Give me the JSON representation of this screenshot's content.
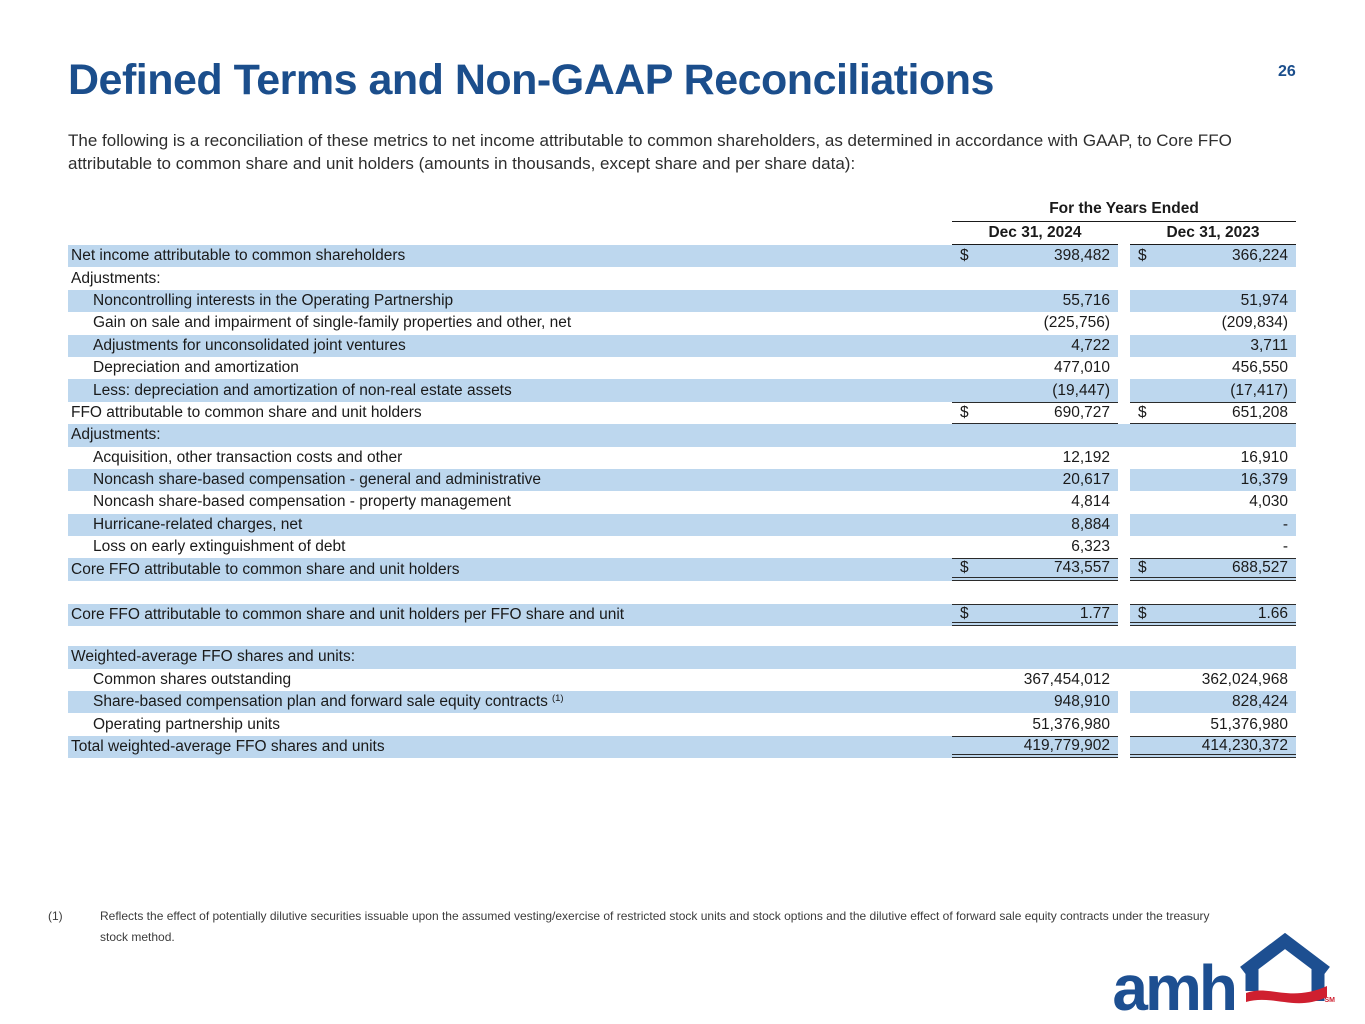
{
  "page": {
    "title": "Defined Terms and Non-GAAP Reconciliations",
    "page_number": "26",
    "intro": "The following is a reconciliation of these metrics to net income attributable to common shareholders, as determined in accordance with GAAP, to Core FFO attributable to common share and unit holders (amounts in thousands, except share and per share data):"
  },
  "colors": {
    "accent_blue": "#1b4e8c",
    "row_shade_blue": "#bdd7ee",
    "logo_red": "#cf1f2f"
  },
  "table": {
    "group_header": "For the Years Ended",
    "col_headers": [
      "Dec 31, 2024",
      "Dec 31, 2023"
    ],
    "rows": [
      {
        "label": "Net income attributable to common shareholders",
        "indent": false,
        "shaded": true,
        "dollar": true,
        "v2024": "398,482",
        "v2023": "366,224"
      },
      {
        "label": "Adjustments:",
        "indent": false,
        "shaded": false
      },
      {
        "label": "Noncontrolling interests in the Operating Partnership",
        "indent": true,
        "shaded": true,
        "v2024": "55,716",
        "v2023": "51,974"
      },
      {
        "label": "Gain on sale and impairment of single-family properties and other, net",
        "indent": true,
        "shaded": false,
        "v2024": "(225,756)",
        "v2023": "(209,834)"
      },
      {
        "label": "Adjustments for unconsolidated joint ventures",
        "indent": true,
        "shaded": true,
        "v2024": "4,722",
        "v2023": "3,711"
      },
      {
        "label": "Depreciation and amortization",
        "indent": true,
        "shaded": false,
        "v2024": "477,010",
        "v2023": "456,550"
      },
      {
        "label": "Less: depreciation and amortization of non-real estate assets",
        "indent": true,
        "shaded": true,
        "v2024": "(19,447)",
        "v2023": "(17,417)"
      },
      {
        "label": "FFO attributable to common share and unit holders",
        "indent": false,
        "shaded": false,
        "dollar": true,
        "line_top": true,
        "line_bottom": "single",
        "v2024": "690,727",
        "v2023": "651,208"
      },
      {
        "label": "Adjustments:",
        "indent": false,
        "shaded": true
      },
      {
        "label": "Acquisition, other transaction costs and other",
        "indent": true,
        "shaded": false,
        "v2024": "12,192",
        "v2023": "16,910"
      },
      {
        "label": "Noncash share-based compensation - general and administrative",
        "indent": true,
        "shaded": true,
        "v2024": "20,617",
        "v2023": "16,379"
      },
      {
        "label": "Noncash share-based compensation - property management",
        "indent": true,
        "shaded": false,
        "v2024": "4,814",
        "v2023": "4,030"
      },
      {
        "label": "Hurricane-related charges, net",
        "indent": true,
        "shaded": true,
        "v2024": "8,884",
        "v2023": "-"
      },
      {
        "label": "Loss on early extinguishment of debt",
        "indent": true,
        "shaded": false,
        "v2024": "6,323",
        "v2023": "-"
      },
      {
        "label": "Core FFO attributable to common share and unit holders",
        "indent": false,
        "shaded": true,
        "dollar": true,
        "line_top": true,
        "line_bottom": "double",
        "v2024": "743,557",
        "v2023": "688,527"
      },
      {
        "spacer": 1
      },
      {
        "label": "Core FFO attributable to common share and unit holders per FFO share and unit",
        "indent": false,
        "shaded": true,
        "dollar": true,
        "line_top": true,
        "line_bottom": "double",
        "v2024": "1.77",
        "v2023": "1.66"
      },
      {
        "spacer": 2
      },
      {
        "label": "Weighted-average FFO shares and units:",
        "indent": false,
        "shaded": true
      },
      {
        "label": "Common shares outstanding",
        "indent": true,
        "shaded": false,
        "v2024": "367,454,012",
        "v2023": "362,024,968"
      },
      {
        "label": "Share-based compensation plan and forward sale equity contracts",
        "sup": "(1)",
        "indent": true,
        "shaded": true,
        "v2024": "948,910",
        "v2023": "828,424"
      },
      {
        "label": "Operating partnership units",
        "indent": true,
        "shaded": false,
        "v2024": "51,376,980",
        "v2023": "51,376,980"
      },
      {
        "label": "Total weighted-average FFO shares and units",
        "indent": false,
        "shaded": true,
        "line_top": true,
        "line_bottom": "double",
        "v2024": "419,779,902",
        "v2023": "414,230,372"
      }
    ]
  },
  "footnote": {
    "marker": "(1)",
    "text": "Reflects the effect of potentially dilutive securities issuable upon the assumed vesting/exercise of restricted stock units and stock options and the dilutive effect of forward sale equity contracts under the treasury stock method."
  },
  "logo": {
    "text": "amh",
    "trademark": "SM"
  }
}
